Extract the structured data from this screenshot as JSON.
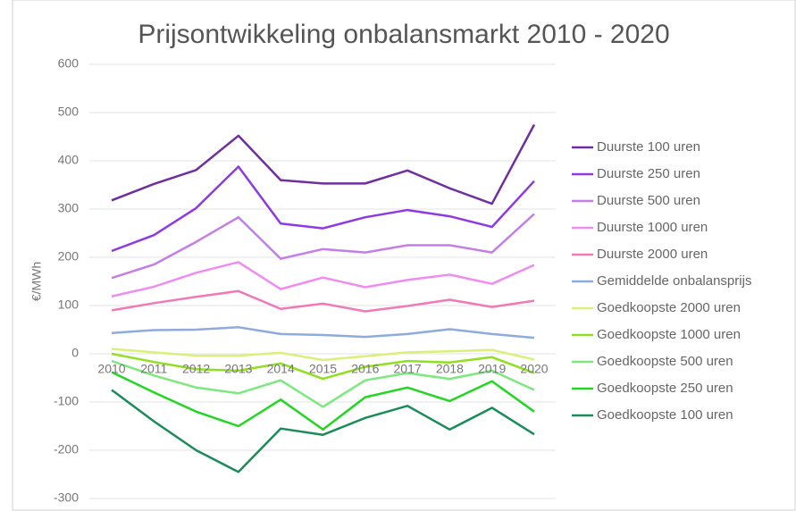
{
  "chart_data": {
    "type": "line",
    "title": "Prijsontwikkeling onbalansmarkt 2010 - 2020",
    "y_label": "€/MWh",
    "categories": [
      "2010",
      "2011",
      "2012",
      "2013",
      "2014",
      "2015",
      "2016",
      "2017",
      "2018",
      "2019",
      "2020"
    ],
    "ylim": [
      -300,
      600
    ],
    "yticks": [
      -300,
      -200,
      -100,
      0,
      100,
      200,
      300,
      400,
      500,
      600
    ],
    "grid": true,
    "legend": "right",
    "series": [
      {
        "name": "Duurste 100 uren",
        "color": "#6f2f9f",
        "values": [
          318,
          352,
          381,
          452,
          360,
          353,
          353,
          380,
          343,
          311,
          475
        ]
      },
      {
        "name": "Duurste 250 uren",
        "color": "#8e3ae0",
        "values": [
          213,
          246,
          302,
          388,
          270,
          260,
          283,
          298,
          285,
          263,
          358
        ]
      },
      {
        "name": "Duurste 500 uren",
        "color": "#c47ee8",
        "values": [
          157,
          185,
          232,
          283,
          197,
          217,
          210,
          225,
          225,
          210,
          290
        ]
      },
      {
        "name": "Duurste 1000 uren",
        "color": "#f08cf0",
        "values": [
          119,
          139,
          168,
          190,
          134,
          158,
          138,
          153,
          164,
          145,
          184
        ]
      },
      {
        "name": "Duurste 2000 uren",
        "color": "#f07ab8",
        "values": [
          90,
          105,
          118,
          130,
          93,
          104,
          88,
          99,
          112,
          97,
          110
        ]
      },
      {
        "name": "Gemiddelde onbalansprijs",
        "color": "#8faadc",
        "values": [
          43,
          49,
          50,
          55,
          41,
          39,
          35,
          41,
          51,
          41,
          33
        ]
      },
      {
        "name": "Goedkoopste 2000 uren",
        "color": "#d9f07a",
        "values": [
          10,
          3,
          -4,
          -4,
          2,
          -13,
          -5,
          3,
          5,
          8,
          -12
        ]
      },
      {
        "name": "Goedkoopste 1000 uren",
        "color": "#8fe020",
        "values": [
          0,
          -17,
          -32,
          -35,
          -20,
          -52,
          -27,
          -15,
          -18,
          -7,
          -40
        ]
      },
      {
        "name": "Goedkoopste 500 uren",
        "color": "#7de87d",
        "values": [
          -15,
          -45,
          -70,
          -82,
          -55,
          -110,
          -55,
          -40,
          -52,
          -35,
          -75
        ]
      },
      {
        "name": "Goedkoopste 250 uren",
        "color": "#22d622",
        "values": [
          -38,
          -80,
          -120,
          -150,
          -95,
          -157,
          -90,
          -70,
          -98,
          -57,
          -120
        ]
      },
      {
        "name": "Goedkoopste 100 uren",
        "color": "#1a8c5a",
        "values": [
          -75,
          -140,
          -200,
          -245,
          -155,
          -168,
          -133,
          -108,
          -157,
          -112,
          -167
        ]
      }
    ]
  }
}
